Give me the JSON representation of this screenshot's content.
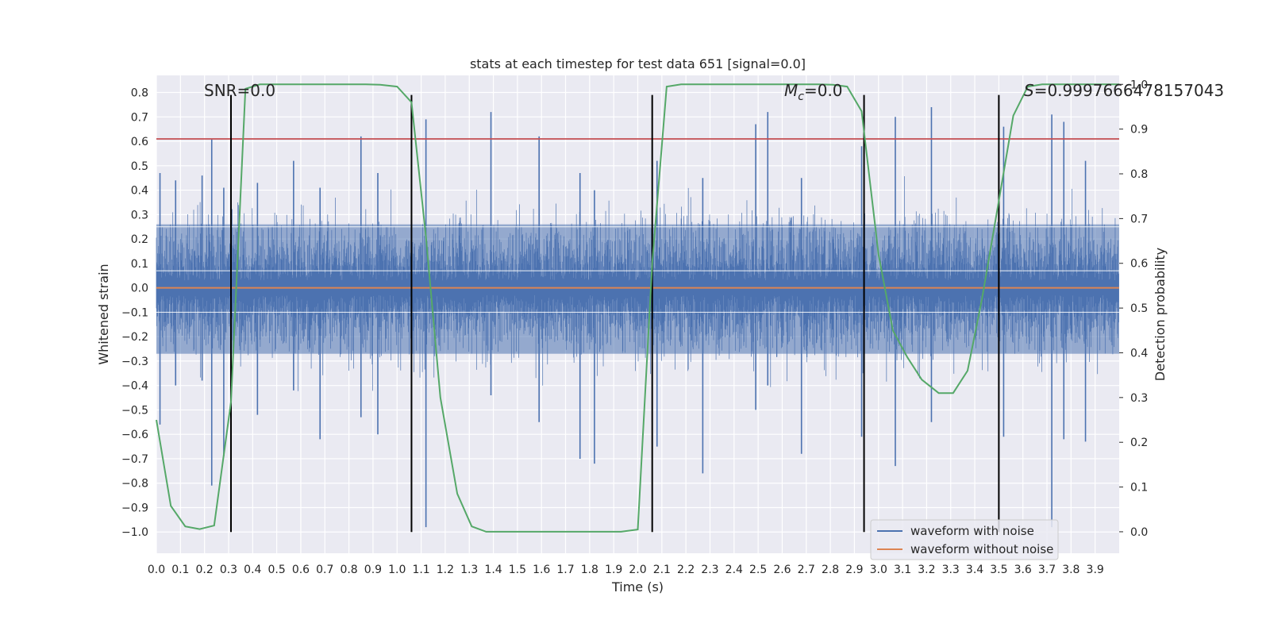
{
  "chart_data": {
    "type": "line",
    "title": "stats at each timestep for test data 651 [signal=0.0]",
    "xlabel": "Time (s)",
    "ylabel": "Whitened strain",
    "ylabel_right": "Detection probability",
    "xlim": [
      0.0,
      4.0
    ],
    "ylim": [
      -1.087,
      0.87
    ],
    "ylim_right": [
      -0.048,
      1.02
    ],
    "x_ticks": [
      "0.0",
      "0.1",
      "0.2",
      "0.3",
      "0.4",
      "0.5",
      "0.6",
      "0.7",
      "0.8",
      "0.9",
      "1.0",
      "1.1",
      "1.2",
      "1.3",
      "1.4",
      "1.5",
      "1.6",
      "1.7",
      "1.8",
      "1.9",
      "2.0",
      "2.1",
      "2.2",
      "2.3",
      "2.4",
      "2.5",
      "2.6",
      "2.7",
      "2.8",
      "2.9",
      "3.0",
      "3.1",
      "3.2",
      "3.3",
      "3.4",
      "3.5",
      "3.6",
      "3.7",
      "3.8",
      "3.9"
    ],
    "y_ticks": [
      "0.8",
      "0.7",
      "0.6",
      "0.5",
      "0.4",
      "0.3",
      "0.2",
      "0.1",
      "0.0",
      "−0.1",
      "−0.2",
      "−0.3",
      "−0.4",
      "−0.5",
      "−0.6",
      "−0.7",
      "−0.8",
      "−0.9",
      "−1.0"
    ],
    "y_ticks_right": [
      "0.0",
      "0.1",
      "0.2",
      "0.3",
      "0.4",
      "0.5",
      "0.6",
      "0.7",
      "0.8",
      "0.9",
      "1.0"
    ],
    "annotations": {
      "snr": "SNR=0.0",
      "mc_symbol": "M",
      "mc_sub": "c",
      "mc_value": "=0.0",
      "s_symbol": "S",
      "s_value": "=0.9997666478157043"
    },
    "threshold_line": {
      "y": 0.61,
      "color": "#c44e52"
    },
    "vertical_markers": [
      0.31,
      1.06,
      2.06,
      2.94,
      3.5
    ],
    "noise_envelope_spikes": [
      {
        "x": 0.015,
        "hi": 0.47,
        "lo": -0.56
      },
      {
        "x": 0.08,
        "hi": 0.44,
        "lo": -0.4
      },
      {
        "x": 0.19,
        "hi": 0.46,
        "lo": -0.38
      },
      {
        "x": 0.23,
        "hi": 0.61,
        "lo": -0.81
      },
      {
        "x": 0.28,
        "hi": 0.41,
        "lo": -0.69
      },
      {
        "x": 0.42,
        "hi": 0.43,
        "lo": -0.52
      },
      {
        "x": 0.57,
        "hi": 0.52,
        "lo": -0.42
      },
      {
        "x": 0.68,
        "hi": 0.41,
        "lo": -0.62
      },
      {
        "x": 0.85,
        "hi": 0.62,
        "lo": -0.53
      },
      {
        "x": 0.92,
        "hi": 0.47,
        "lo": -0.6
      },
      {
        "x": 1.12,
        "hi": 0.69,
        "lo": -0.98
      },
      {
        "x": 1.39,
        "hi": 0.72,
        "lo": -0.44
      },
      {
        "x": 1.59,
        "hi": 0.62,
        "lo": -0.55
      },
      {
        "x": 1.76,
        "hi": 0.47,
        "lo": -0.7
      },
      {
        "x": 1.82,
        "hi": 0.4,
        "lo": -0.72
      },
      {
        "x": 2.06,
        "hi": 0.78,
        "lo": -0.55
      },
      {
        "x": 2.08,
        "hi": 0.52,
        "lo": -0.65
      },
      {
        "x": 2.27,
        "hi": 0.45,
        "lo": -0.76
      },
      {
        "x": 2.49,
        "hi": 0.67,
        "lo": -0.5
      },
      {
        "x": 2.54,
        "hi": 0.72,
        "lo": -0.4
      },
      {
        "x": 2.68,
        "hi": 0.45,
        "lo": -0.68
      },
      {
        "x": 2.93,
        "hi": 0.58,
        "lo": -0.61
      },
      {
        "x": 3.07,
        "hi": 0.7,
        "lo": -0.73
      },
      {
        "x": 3.22,
        "hi": 0.74,
        "lo": -0.55
      },
      {
        "x": 3.52,
        "hi": 0.66,
        "lo": -0.61
      },
      {
        "x": 3.72,
        "hi": 0.71,
        "lo": -0.98
      },
      {
        "x": 3.77,
        "hi": 0.68,
        "lo": -0.62
      },
      {
        "x": 3.86,
        "hi": 0.52,
        "lo": -0.63
      }
    ],
    "series": [
      {
        "name": "waveform with noise",
        "color": "#4c72b0",
        "style": "dense noise, core band about ±0.26"
      },
      {
        "name": "waveform without noise",
        "color": "#dd8452",
        "x": [
          0.0,
          4.0
        ],
        "y": [
          0.0,
          0.0
        ]
      },
      {
        "name": "",
        "color": "#55a868",
        "axis": "right",
        "x": [
          0.0,
          0.06,
          0.12,
          0.18,
          0.24,
          0.31,
          0.37,
          0.43,
          0.5,
          0.56,
          0.62,
          0.68,
          0.75,
          0.81,
          0.87,
          0.93,
          1.0,
          1.06,
          1.12,
          1.18,
          1.25,
          1.31,
          1.37,
          1.43,
          1.5,
          1.56,
          1.62,
          1.68,
          1.75,
          1.81,
          1.87,
          1.93,
          2.0,
          2.06,
          2.12,
          2.18,
          2.25,
          2.31,
          2.37,
          2.43,
          2.5,
          2.56,
          2.62,
          2.68,
          2.75,
          2.81,
          2.87,
          2.93,
          3.0,
          3.06,
          3.12,
          3.18,
          3.25,
          3.31,
          3.37,
          3.43,
          3.5,
          3.56,
          3.62,
          3.68,
          3.75,
          3.81,
          3.87,
          3.93,
          4.0
        ],
        "y": [
          0.25,
          0.058,
          0.012,
          0.006,
          0.014,
          0.29,
          0.99,
          1.0,
          1.0,
          1.0,
          1.0,
          1.0,
          1.0,
          1.0,
          1.0,
          0.999,
          0.995,
          0.96,
          0.66,
          0.3,
          0.085,
          0.012,
          0.0,
          0.0,
          0.0,
          0.0,
          0.0,
          0.0,
          0.0,
          0.0,
          0.0,
          0.0,
          0.005,
          0.6,
          0.995,
          1.0,
          1.0,
          1.0,
          1.0,
          1.0,
          1.0,
          1.0,
          1.0,
          1.0,
          1.0,
          0.999,
          0.995,
          0.94,
          0.62,
          0.45,
          0.39,
          0.34,
          0.31,
          0.31,
          0.36,
          0.52,
          0.74,
          0.93,
          0.995,
          1.0,
          1.0,
          1.0,
          1.0,
          1.0,
          1.0
        ]
      }
    ],
    "legend": {
      "placement": "lower-right"
    },
    "grid": true
  }
}
